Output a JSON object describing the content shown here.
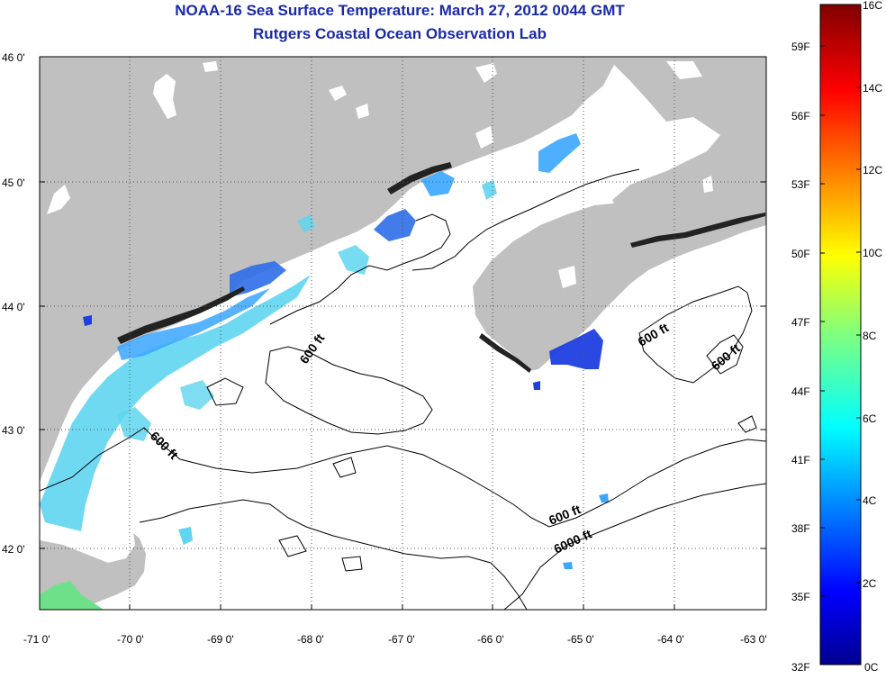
{
  "title": {
    "line1": "NOAA-16 Sea Surface Temperature:  March 27, 2012 0044 GMT",
    "line2": "Rutgers Coastal Ocean Observation Lab"
  },
  "map": {
    "lon_ticks": [
      "-71 0'",
      "-70 0'",
      "-69 0'",
      "-68 0'",
      "-67 0'",
      "-66 0'",
      "-65 0'",
      "-64 0'",
      "-63 0'"
    ],
    "lat_ticks": [
      "46 0'",
      "45 0'",
      "44 0'",
      "43 0'",
      "42 0'"
    ],
    "lon_range": [
      -71,
      -63
    ],
    "lat_range": [
      41.5,
      46
    ],
    "land_color": "#c0c0c0",
    "ocean_color": "#ffffff",
    "contour_labels": [
      "600 ft",
      "600 ft",
      "600 ft",
      "600 ft",
      "600 ft",
      "6000 ft"
    ]
  },
  "colorbar": {
    "celsius_labels": [
      "16C",
      "14C",
      "12C",
      "10C",
      "8C",
      "6C",
      "4C",
      "2C",
      "0C"
    ],
    "fahrenheit_labels": [
      "59F",
      "56F",
      "53F",
      "50F",
      "47F",
      "44F",
      "41F",
      "38F",
      "35F",
      "32F"
    ],
    "range_c": [
      0,
      16
    ],
    "colormap": "jet"
  }
}
